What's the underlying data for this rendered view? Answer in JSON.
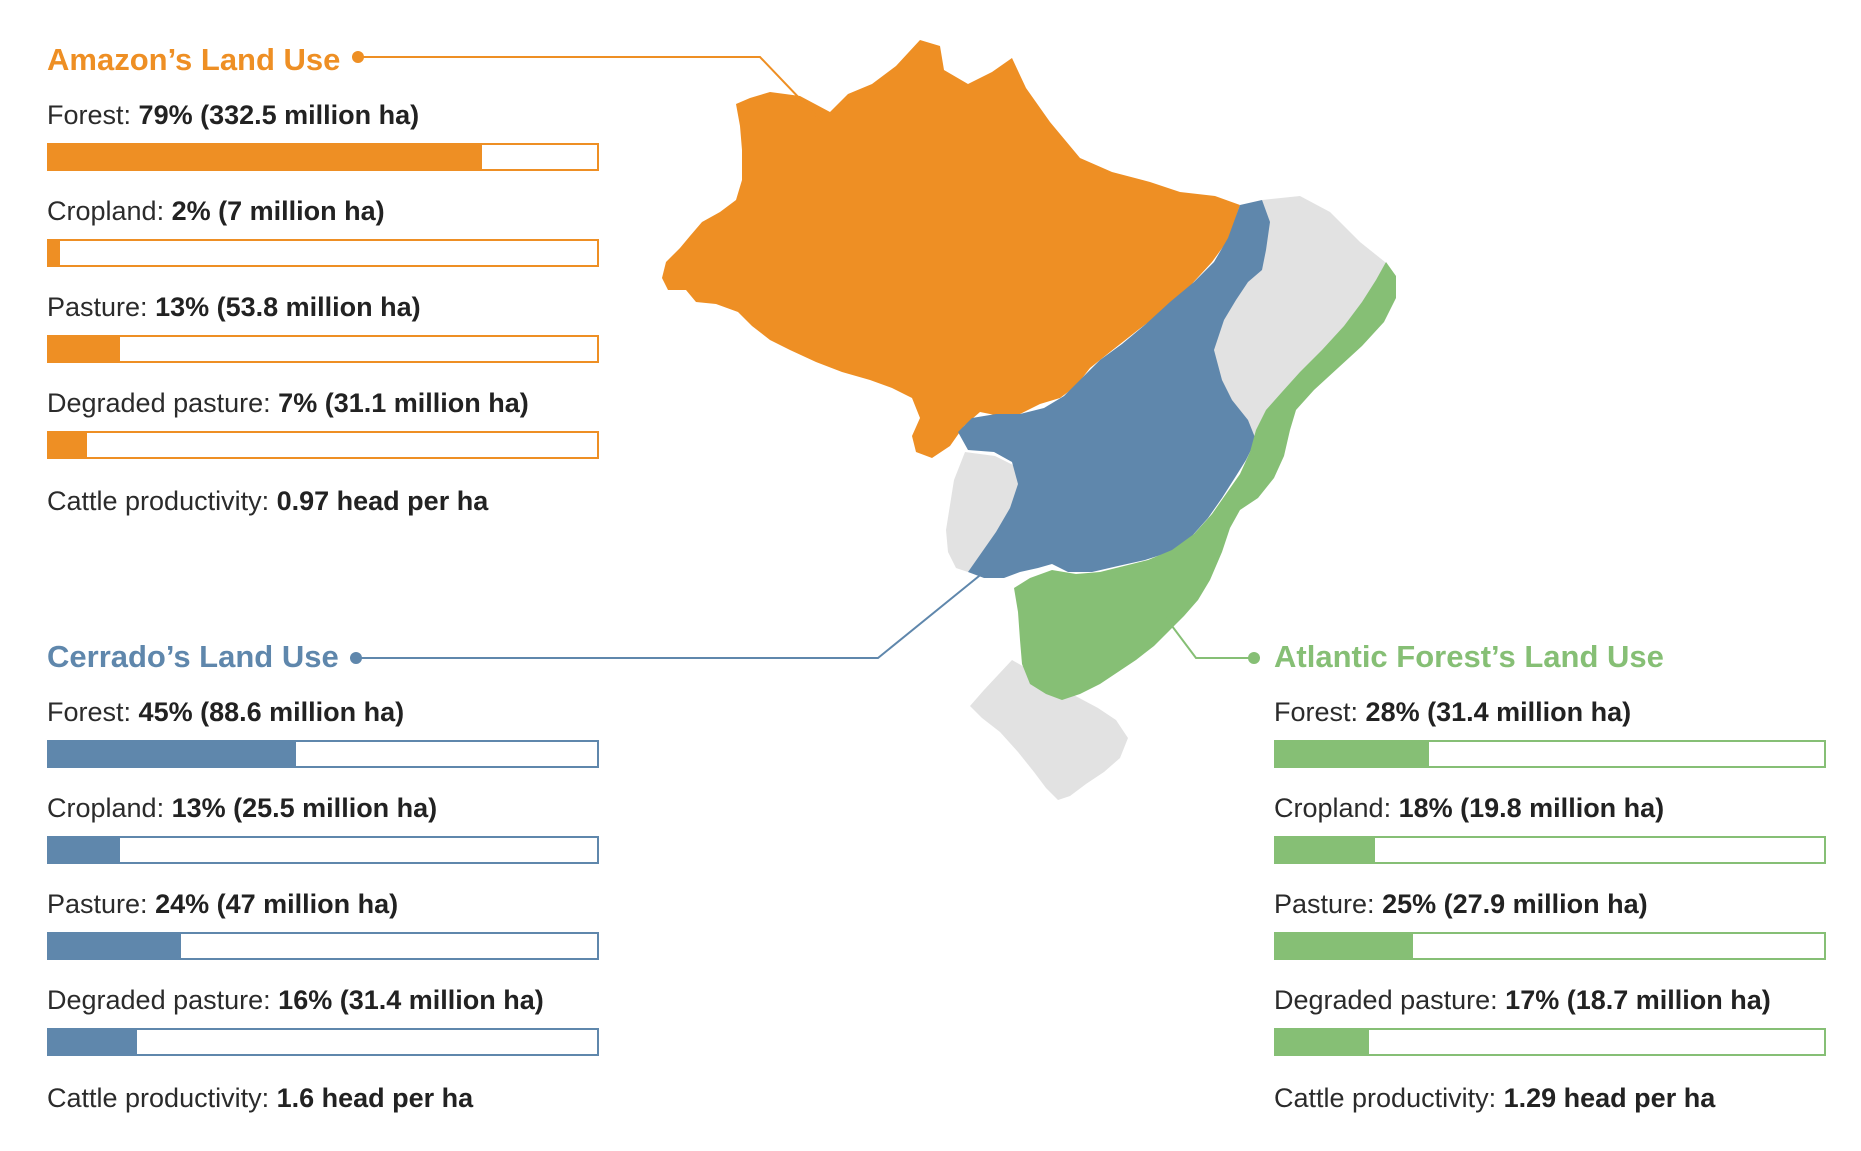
{
  "colors": {
    "amazon": "#ee8f24",
    "cerrado": "#5f87ac",
    "atlantic": "#86bf75",
    "other": "#e2e2e2"
  },
  "chart_data": [
    {
      "type": "bar",
      "title": "Amazon’s Land Use",
      "color": "#ee8f24",
      "bars": [
        {
          "category": "Forest",
          "label": "Forest:",
          "value_text": "79% (332.5 million ha)",
          "percent": 79,
          "million_ha": 332.5
        },
        {
          "category": "Cropland",
          "label": "Cropland:",
          "value_text": "2% (7 million ha)",
          "percent": 2,
          "million_ha": 7
        },
        {
          "category": "Pasture",
          "label": "Pasture:",
          "value_text": "13% (53.8 million ha)",
          "percent": 13,
          "million_ha": 53.8
        },
        {
          "category": "Degraded pasture",
          "label": "Degraded pasture:",
          "value_text": "7% (31.1 million ha)",
          "percent": 7,
          "million_ha": 31.1
        }
      ],
      "cattle": {
        "label": "Cattle productivity:",
        "value_text": "0.97 head per ha",
        "value": 0.97
      },
      "ylim": [
        0,
        100
      ]
    },
    {
      "type": "bar",
      "title": "Cerrado’s Land Use",
      "color": "#5f87ac",
      "bars": [
        {
          "category": "Forest",
          "label": "Forest:",
          "value_text": "45% (88.6 million ha)",
          "percent": 45,
          "million_ha": 88.6
        },
        {
          "category": "Cropland",
          "label": "Cropland:",
          "value_text": "13% (25.5 million ha)",
          "percent": 13,
          "million_ha": 25.5
        },
        {
          "category": "Pasture",
          "label": "Pasture:",
          "value_text": "24% (47 million ha)",
          "percent": 24,
          "million_ha": 47
        },
        {
          "category": "Degraded pasture",
          "label": "Degraded pasture:",
          "value_text": "16% (31.4 million ha)",
          "percent": 16,
          "million_ha": 31.4
        }
      ],
      "cattle": {
        "label": "Cattle productivity:",
        "value_text": "1.6 head per ha",
        "value": 1.6
      },
      "ylim": [
        0,
        100
      ]
    },
    {
      "type": "bar",
      "title": "Atlantic Forest’s Land Use",
      "color": "#86bf75",
      "bars": [
        {
          "category": "Forest",
          "label": "Forest:",
          "value_text": "28% (31.4 million ha)",
          "percent": 28,
          "million_ha": 31.4
        },
        {
          "category": "Cropland",
          "label": "Cropland:",
          "value_text": "18% (19.8 million ha)",
          "percent": 18,
          "million_ha": 19.8
        },
        {
          "category": "Pasture",
          "label": "Pasture:",
          "value_text": "25% (27.9 million ha)",
          "percent": 25,
          "million_ha": 27.9
        },
        {
          "category": "Degraded pasture",
          "label": "Degraded pasture:",
          "value_text": "17% (18.7 million ha)",
          "percent": 17,
          "million_ha": 18.7
        }
      ],
      "cattle": {
        "label": "Cattle productivity:",
        "value_text": "1.29 head per ha",
        "value": 1.29
      },
      "ylim": [
        0,
        100
      ]
    }
  ]
}
